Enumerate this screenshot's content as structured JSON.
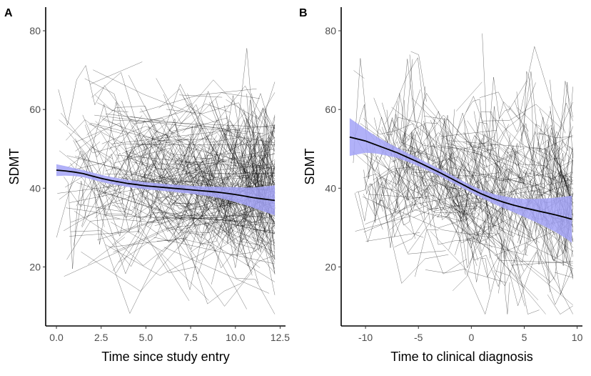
{
  "chart_data": [
    {
      "type": "line",
      "panel_label": "A",
      "title": "",
      "xlabel": "Time since study entry",
      "ylabel": "SDMT",
      "xlim": [
        -0.6,
        12.8
      ],
      "ylim": [
        5,
        86
      ],
      "x_ticks": [
        0,
        2.5,
        5,
        7.5,
        10,
        12.5
      ],
      "x_tick_labels": [
        "0.0",
        "2.5",
        "5.0",
        "7.5",
        "10.0",
        "12.5"
      ],
      "y_ticks": [
        20,
        40,
        60,
        80
      ],
      "y_tick_labels": [
        "20",
        "40",
        "60",
        "80"
      ],
      "grid": false,
      "individual_trajectories": {
        "count": 320,
        "x_min": 0,
        "x_max": 12.2,
        "y_min": 8,
        "y_max": 82,
        "trend_slope": -0.7,
        "noise_sd": 7,
        "span_max": 9,
        "seed": 11,
        "color": "#000000"
      },
      "smooth_fit": {
        "x": [
          0,
          0.5,
          1,
          1.5,
          2,
          2.5,
          3,
          3.5,
          4,
          4.5,
          5,
          5.5,
          6,
          6.5,
          7,
          7.5,
          8,
          8.5,
          9,
          9.5,
          10,
          10.5,
          11,
          11.5,
          12.2
        ],
        "y": [
          44.6,
          44.4,
          44.1,
          43.7,
          43.1,
          42.5,
          42.0,
          41.6,
          41.2,
          40.9,
          40.6,
          40.4,
          40.2,
          40.0,
          39.8,
          39.6,
          39.4,
          39.2,
          39.0,
          38.7,
          38.4,
          38.0,
          37.6,
          37.3,
          36.9
        ],
        "ci_half_width": [
          1.5,
          1.2,
          1.0,
          0.9,
          0.9,
          0.9,
          0.9,
          0.9,
          0.9,
          0.9,
          0.9,
          0.9,
          0.9,
          0.9,
          1.0,
          1.0,
          1.1,
          1.2,
          1.4,
          1.6,
          1.9,
          2.2,
          2.6,
          3.1,
          3.8
        ],
        "line_color": "#000000",
        "ribbon_color": "#a3a3f7"
      }
    },
    {
      "type": "line",
      "panel_label": "B",
      "title": "",
      "xlabel": "Time to clinical diagnosis",
      "ylabel": "SDMT",
      "xlim": [
        -12.3,
        10.5
      ],
      "ylim": [
        5,
        86
      ],
      "x_ticks": [
        -10,
        -5,
        0,
        5,
        10
      ],
      "x_tick_labels": [
        "-10",
        "-5",
        "0",
        "5",
        "10"
      ],
      "y_ticks": [
        20,
        40,
        60,
        80
      ],
      "y_tick_labels": [
        "20",
        "40",
        "60",
        "80"
      ],
      "grid": false,
      "individual_trajectories": {
        "count": 320,
        "x_min": -11.3,
        "x_max": 9.6,
        "y_min": 8,
        "y_max": 82,
        "trend_slope": -1.1,
        "noise_sd": 7,
        "span_max": 9,
        "seed": 29,
        "color": "#000000"
      },
      "smooth_fit": {
        "x": [
          -11.5,
          -10,
          -9,
          -8,
          -7,
          -6,
          -5,
          -4,
          -3,
          -2,
          -1,
          0,
          1,
          2,
          3,
          4,
          5,
          6,
          7,
          8,
          9,
          9.5
        ],
        "y": [
          53.0,
          52.0,
          51.0,
          50.0,
          49.0,
          47.8,
          46.6,
          45.3,
          44.0,
          42.6,
          41.2,
          39.8,
          38.5,
          37.4,
          36.5,
          35.7,
          35.0,
          34.4,
          33.8,
          33.2,
          32.5,
          32.1
        ],
        "ci_half_width": [
          4.8,
          3.0,
          2.2,
          1.7,
          1.3,
          1.1,
          1.0,
          0.9,
          0.9,
          0.9,
          0.9,
          0.9,
          1.0,
          1.2,
          1.5,
          1.8,
          2.3,
          2.9,
          3.6,
          4.4,
          5.4,
          6.0
        ],
        "line_color": "#000000",
        "ribbon_color": "#a3a3f7"
      }
    }
  ]
}
